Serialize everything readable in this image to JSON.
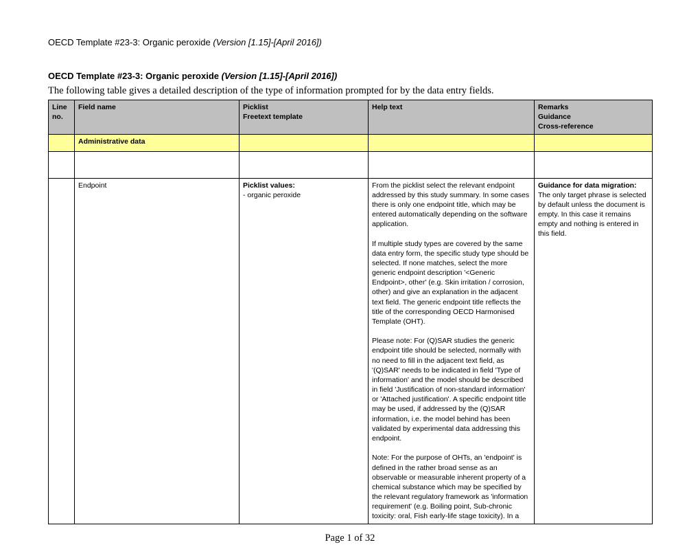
{
  "header_text_plain": "OECD Template #23-3: Organic peroxide ",
  "header_text_italic": "(Version [1.15]-[April 2016])",
  "title_plain": "OECD Template #23-3: Organic peroxide ",
  "title_italic": "(Version [1.15]-[April 2016])",
  "intro": "The following table gives a detailed description of the type of information prompted for by the data entry fields.",
  "columns": {
    "c1_l1": "Line",
    "c1_l2": "no.",
    "c2": "Field name",
    "c3_l1": "Picklist",
    "c3_l2": "Freetext template",
    "c4": "Help text",
    "c5_l1": "Remarks",
    "c5_l2": "Guidance",
    "c5_l3": "Cross-reference"
  },
  "section_label": "Administrative data",
  "row1": {
    "field_name": "Endpoint",
    "picklist_label": "Picklist values:",
    "picklist_item": "- organic peroxide",
    "help_p1": "From the picklist select the relevant endpoint addressed by this study summary. In some cases there is only one endpoint title, which may be entered automatically depending on the software application.",
    "help_p2": "If multiple study types are covered by the same data entry form, the specific study type should be selected. If none matches, select the more generic endpoint description '<Generic Endpoint>, other' (e.g. Skin irritation / corrosion, other) and give an explanation in the adjacent text field. The generic endpoint title reflects the title of the corresponding OECD Harmonised Template (OHT).",
    "help_p3": "Please note: For (Q)SAR studies the generic endpoint title should be selected, normally with no need to fill in the adjacent text field, as '(Q)SAR' needs to be indicated in field 'Type of information' and the model should be described in field 'Justification of non-standard information' or 'Attached justification'. A specific endpoint title may be used, if addressed by the (Q)SAR information, i.e. the model behind has been validated by experimental data addressing this endpoint.",
    "help_p4": "Note: For the purpose of OHTs, an 'endpoint' is defined in the rather broad sense as an observable or measurable inherent property of a chemical substance which may be specified by the relevant regulatory framework as 'information requirement' (e.g. Boiling point, Sub-chronic toxicity: oral, Fish early-life stage toxicity). In a",
    "remarks_label": "Guidance for data migration:",
    "remarks_body": "The only target phrase is selected by default unless the document is empty. In this case it remains empty and nothing is entered in this field."
  },
  "footer": "Page 1 of 32"
}
